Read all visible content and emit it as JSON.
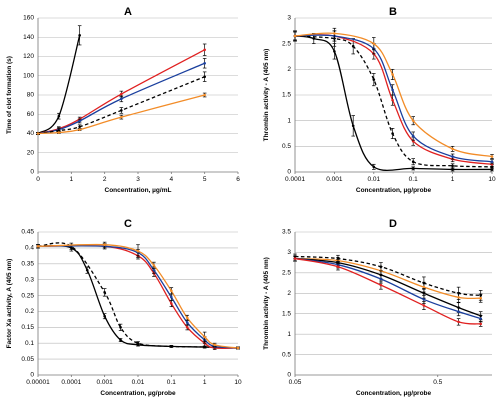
{
  "chart_data": [
    {
      "panel": "A",
      "type": "line",
      "xlabel": "Concentration, µg/mL",
      "ylabel": "Time of clot formation (s)",
      "xscale": "linear",
      "xlim": [
        0,
        6
      ],
      "ylim": [
        0,
        160
      ],
      "xticks": [
        0,
        1,
        2,
        3,
        4,
        5,
        6
      ],
      "yticks": [
        0,
        20,
        40,
        60,
        80,
        100,
        120,
        140,
        160
      ],
      "grid": "horizontal",
      "series": [
        {
          "color": "#000000",
          "dash": "solid",
          "x": [
            0,
            0.625,
            1.25
          ],
          "y": [
            40,
            58,
            142
          ],
          "err": [
            1,
            3,
            10
          ]
        },
        {
          "color": "#e02020",
          "dash": "solid",
          "x": [
            0,
            0.625,
            1.25,
            2.5,
            5
          ],
          "y": [
            40,
            45,
            55,
            81,
            127
          ],
          "err": [
            1,
            2,
            2,
            3,
            6
          ]
        },
        {
          "color": "#1a3f9e",
          "dash": "solid",
          "x": [
            0,
            0.625,
            1.25,
            2.5,
            5
          ],
          "y": [
            40,
            44,
            53,
            76,
            113
          ],
          "err": [
            1,
            2,
            2,
            3,
            5
          ]
        },
        {
          "color": "#000000",
          "dash": "dashed",
          "x": [
            0,
            0.625,
            1.25,
            2.5,
            5
          ],
          "y": [
            40,
            43,
            47,
            64,
            99
          ],
          "err": [
            1,
            2,
            2,
            3,
            5
          ]
        },
        {
          "color": "#f28c28",
          "dash": "solid",
          "x": [
            0,
            0.625,
            1.25,
            2.5,
            5
          ],
          "y": [
            40,
            41,
            44,
            57,
            80
          ],
          "err": [
            1,
            1,
            1,
            2,
            2
          ]
        }
      ]
    },
    {
      "panel": "B",
      "type": "line",
      "xlabel": "Concentration, µg/probe",
      "ylabel": "Thrombin activity - A (405 nm)",
      "xscale": "log",
      "xlim": [
        0.0001,
        10
      ],
      "ylim": [
        0,
        3
      ],
      "xticks": [
        "0.0001",
        "0.001",
        "0.01",
        "0.1",
        "1",
        "10"
      ],
      "yticks": [
        "0",
        "0.5",
        "1",
        "1.5",
        "2",
        "2.5",
        "3"
      ],
      "grid": "horizontal",
      "series": [
        {
          "color": "#000000",
          "dash": "solid",
          "x": [
            0.0001,
            0.0003,
            0.001,
            0.003,
            0.01,
            0.1,
            1,
            10
          ],
          "y": [
            2.65,
            2.6,
            2.35,
            0.9,
            0.1,
            0.07,
            0.05,
            0.05
          ],
          "err": [
            0.1,
            0.1,
            0.15,
            0.2,
            0.05,
            0.03,
            0.03,
            0.03
          ]
        },
        {
          "color": "#000000",
          "dash": "dashed",
          "x": [
            0.0001,
            0.001,
            0.003,
            0.01,
            0.03,
            0.1,
            1,
            10
          ],
          "y": [
            2.65,
            2.6,
            2.45,
            1.8,
            0.75,
            0.2,
            0.12,
            0.1
          ],
          "err": [
            0.1,
            0.15,
            0.15,
            0.12,
            0.1,
            0.06,
            0.04,
            0.04
          ]
        },
        {
          "color": "#e02020",
          "dash": "solid",
          "x": [
            0.0001,
            0.001,
            0.01,
            0.03,
            0.1,
            1,
            10
          ],
          "y": [
            2.65,
            2.65,
            2.3,
            1.4,
            0.6,
            0.25,
            0.15
          ],
          "err": [
            0.08,
            0.1,
            0.1,
            0.1,
            0.08,
            0.05,
            0.04
          ]
        },
        {
          "color": "#1a3f9e",
          "dash": "solid",
          "x": [
            0.0001,
            0.001,
            0.01,
            0.03,
            0.1,
            1,
            10
          ],
          "y": [
            2.65,
            2.65,
            2.4,
            1.6,
            0.7,
            0.3,
            0.2
          ],
          "err": [
            0.08,
            0.1,
            0.1,
            0.1,
            0.08,
            0.05,
            0.04
          ]
        },
        {
          "color": "#f28c28",
          "dash": "solid",
          "x": [
            0.0001,
            0.001,
            0.01,
            0.03,
            0.1,
            1,
            10
          ],
          "y": [
            2.65,
            2.7,
            2.5,
            1.9,
            1.0,
            0.45,
            0.3
          ],
          "err": [
            0.08,
            0.1,
            0.12,
            0.1,
            0.08,
            0.05,
            0.04
          ]
        }
      ]
    },
    {
      "panel": "C",
      "type": "line",
      "xlabel": "Concentration, µg/probe",
      "ylabel": "Factor Xa activity, A (405 nm)",
      "xscale": "log",
      "xlim": [
        1e-05,
        10
      ],
      "ylim": [
        0,
        0.45
      ],
      "xticks": [
        "0.00001",
        "0.0001",
        "0.001",
        "0.01",
        "0.1",
        "1",
        "10"
      ],
      "yticks": [
        "0",
        "0.05",
        "0.1",
        "0.15",
        "0.2",
        "0.25",
        "0.3",
        "0.35",
        "0.4",
        "0.45"
      ],
      "grid": "horizontal",
      "series": [
        {
          "color": "#000000",
          "dash": "solid",
          "x": [
            1e-05,
            0.0001,
            0.0003,
            0.001,
            0.003,
            0.01,
            0.1,
            1,
            10
          ],
          "y": [
            0.405,
            0.4,
            0.33,
            0.185,
            0.11,
            0.095,
            0.09,
            0.088,
            0.085
          ],
          "err": [
            0.005,
            0.01,
            0.01,
            0.008,
            0.005,
            0.004,
            0.003,
            0.003,
            0.003
          ]
        },
        {
          "color": "#000000",
          "dash": "dashed",
          "x": [
            1e-05,
            0.0001,
            0.001,
            0.003,
            0.01,
            0.1,
            1,
            10
          ],
          "y": [
            0.405,
            0.405,
            0.26,
            0.15,
            0.1,
            0.09,
            0.088,
            0.085
          ],
          "err": [
            0.005,
            0.01,
            0.012,
            0.01,
            0.005,
            0.003,
            0.003,
            0.003
          ]
        },
        {
          "color": "#e02020",
          "dash": "solid",
          "x": [
            1e-05,
            0.001,
            0.01,
            0.03,
            0.1,
            0.3,
            1,
            2,
            10
          ],
          "y": [
            0.405,
            0.405,
            0.375,
            0.32,
            0.225,
            0.15,
            0.1,
            0.085,
            0.085
          ],
          "err": [
            0.005,
            0.008,
            0.01,
            0.01,
            0.01,
            0.008,
            0.01,
            0.005,
            0.003
          ]
        },
        {
          "color": "#1a3f9e",
          "dash": "solid",
          "x": [
            1e-05,
            0.001,
            0.01,
            0.03,
            0.1,
            0.3,
            1,
            2,
            10
          ],
          "y": [
            0.405,
            0.405,
            0.385,
            0.33,
            0.245,
            0.165,
            0.11,
            0.09,
            0.085
          ],
          "err": [
            0.005,
            0.008,
            0.01,
            0.01,
            0.01,
            0.008,
            0.01,
            0.005,
            0.003
          ]
        },
        {
          "color": "#f28c28",
          "dash": "solid",
          "x": [
            1e-05,
            0.001,
            0.01,
            0.03,
            0.1,
            0.3,
            1,
            2,
            10
          ],
          "y": [
            0.405,
            0.41,
            0.39,
            0.345,
            0.265,
            0.18,
            0.12,
            0.095,
            0.085
          ],
          "err": [
            0.005,
            0.008,
            0.02,
            0.01,
            0.01,
            0.008,
            0.015,
            0.005,
            0.003
          ]
        }
      ]
    },
    {
      "panel": "D",
      "type": "line",
      "xlabel": "Concentration, µg/probe",
      "ylabel": "Thrombin activity - A (405 nm)",
      "xscale": "log",
      "xlim": [
        0.05,
        1.2
      ],
      "ylim": [
        0,
        3.5
      ],
      "xticks": [
        "0.05",
        "0.5"
      ],
      "yticks": [
        "0",
        "0.5",
        "1",
        "1.5",
        "2",
        "2.5",
        "3",
        "3.5"
      ],
      "grid": "horizontal",
      "series": [
        {
          "color": "#000000",
          "dash": "dashed",
          "x": [
            0.05,
            0.1,
            0.2,
            0.4,
            0.7,
            1.0
          ],
          "y": [
            2.9,
            2.85,
            2.65,
            2.25,
            2.0,
            1.95
          ],
          "err": [
            0.06,
            0.08,
            0.1,
            0.15,
            0.15,
            0.12
          ]
        },
        {
          "color": "#f28c28",
          "dash": "solid",
          "x": [
            0.05,
            0.1,
            0.2,
            0.4,
            0.7,
            1.0
          ],
          "y": [
            2.85,
            2.8,
            2.55,
            2.15,
            1.9,
            1.88
          ],
          "err": [
            0.06,
            0.08,
            0.1,
            0.12,
            0.12,
            0.1
          ]
        },
        {
          "color": "#000000",
          "dash": "solid",
          "x": [
            0.05,
            0.1,
            0.2,
            0.4,
            0.7,
            1.0
          ],
          "y": [
            2.85,
            2.75,
            2.45,
            2.0,
            1.65,
            1.45
          ],
          "err": [
            0.06,
            0.08,
            0.1,
            0.12,
            0.12,
            0.1
          ]
        },
        {
          "color": "#1a3f9e",
          "dash": "solid",
          "x": [
            0.05,
            0.1,
            0.2,
            0.4,
            0.7,
            1.0
          ],
          "y": [
            2.85,
            2.7,
            2.35,
            1.85,
            1.55,
            1.38
          ],
          "err": [
            0.06,
            0.08,
            0.1,
            0.1,
            0.1,
            0.08
          ]
        },
        {
          "color": "#e02020",
          "dash": "solid",
          "x": [
            0.05,
            0.1,
            0.2,
            0.4,
            0.7,
            1.0
          ],
          "y": [
            2.85,
            2.65,
            2.2,
            1.7,
            1.3,
            1.25
          ],
          "err": [
            0.06,
            0.08,
            0.1,
            0.1,
            0.08,
            0.06
          ]
        }
      ]
    }
  ]
}
